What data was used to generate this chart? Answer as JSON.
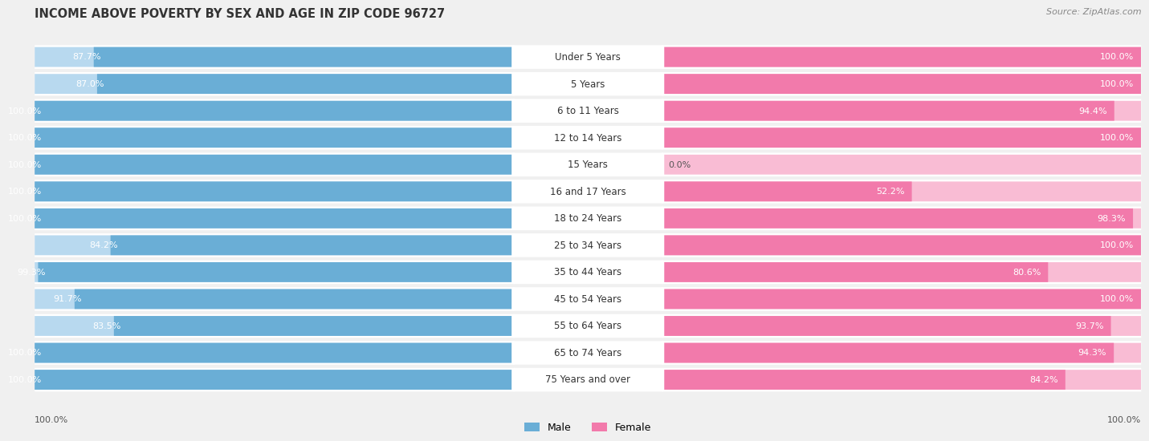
{
  "title": "INCOME ABOVE POVERTY BY SEX AND AGE IN ZIP CODE 96727",
  "source": "Source: ZipAtlas.com",
  "categories": [
    "Under 5 Years",
    "5 Years",
    "6 to 11 Years",
    "12 to 14 Years",
    "15 Years",
    "16 and 17 Years",
    "18 to 24 Years",
    "25 to 34 Years",
    "35 to 44 Years",
    "45 to 54 Years",
    "55 to 64 Years",
    "65 to 74 Years",
    "75 Years and over"
  ],
  "male_values": [
    87.7,
    87.0,
    100.0,
    100.0,
    100.0,
    100.0,
    100.0,
    84.2,
    99.3,
    91.7,
    83.5,
    100.0,
    100.0
  ],
  "female_values": [
    100.0,
    100.0,
    94.4,
    100.0,
    0.0,
    52.2,
    98.3,
    100.0,
    80.6,
    100.0,
    93.7,
    94.3,
    84.2
  ],
  "male_color": "#6aaed6",
  "female_color": "#f27aab",
  "male_light_color": "#b8d9ef",
  "female_light_color": "#f9bcd4",
  "male_label": "Male",
  "female_label": "Female",
  "bg_color": "#f0f0f0",
  "row_bg_color": "#ffffff",
  "title_fontsize": 10.5,
  "source_fontsize": 8,
  "label_fontsize": 8,
  "cat_fontsize": 8.5,
  "bar_height": 0.72,
  "xlim": [
    0,
    100
  ],
  "bottom_label": "100.0%"
}
